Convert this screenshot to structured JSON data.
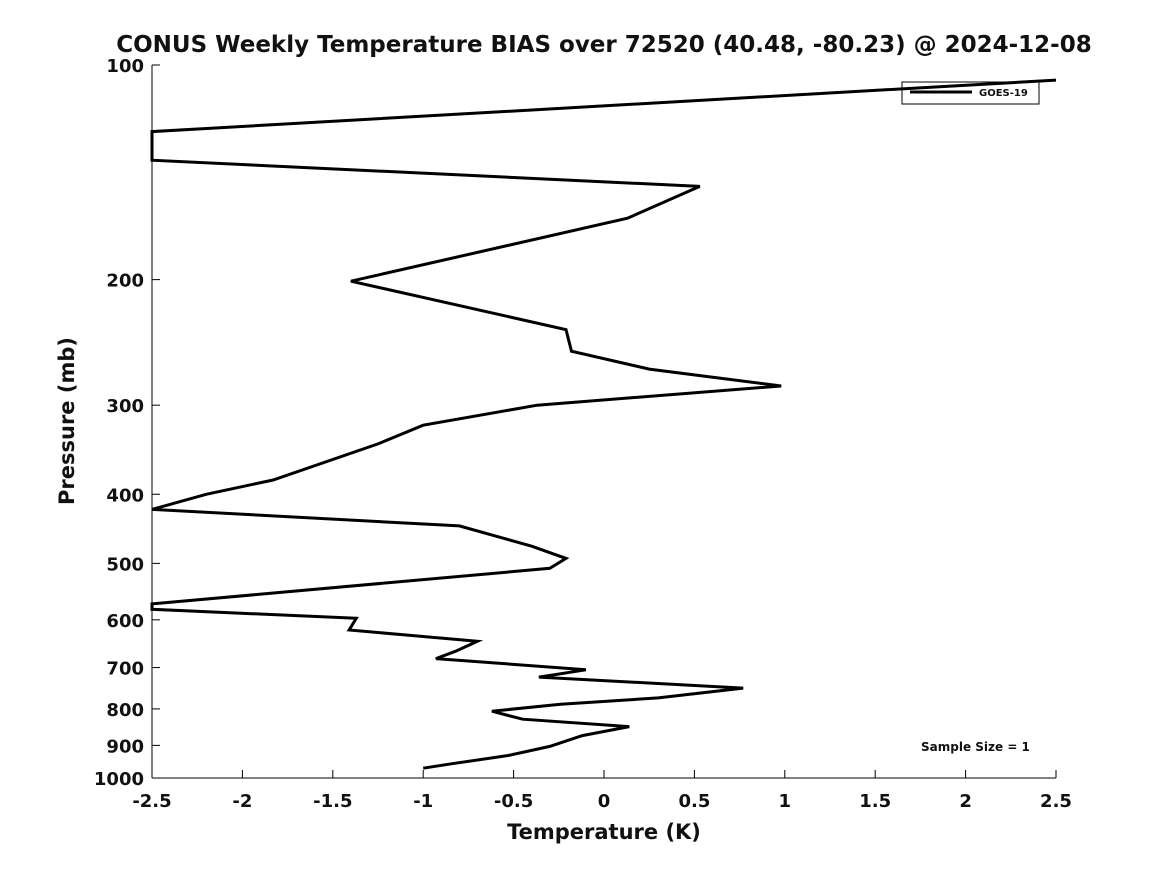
{
  "chart_data": {
    "type": "line",
    "title": "CONUS Weekly Temperature BIAS over 72520 (40.48, -80.23) @ 2024-12-08",
    "xlabel": "Temperature (K)",
    "ylabel": "Pressure (mb)",
    "xlim": [
      -2.5,
      2.5
    ],
    "ylim": [
      100,
      1000
    ],
    "y_scale": "log",
    "y_inverted": true,
    "xticks": [
      -2.5,
      -2,
      -1.5,
      -1,
      -0.5,
      0,
      0.5,
      1,
      1.5,
      2,
      2.5
    ],
    "xtick_labels": [
      "-2.5",
      "-2",
      "-1.5",
      "-1",
      "-0.5",
      "0",
      "0.5",
      "1",
      "1.5",
      "2",
      "2.5"
    ],
    "yticks": [
      100,
      200,
      300,
      400,
      500,
      600,
      700,
      800,
      900,
      1000
    ],
    "ytick_labels": [
      "100",
      "200",
      "300",
      "400",
      "500",
      "600",
      "700",
      "800",
      "900",
      "1000"
    ],
    "grid": false,
    "legend_position": "top-right",
    "annotation": "Sample Size = 1",
    "line_color": "#000000",
    "series": [
      {
        "name": "GOES-19",
        "points": [
          [
            2.5,
            105
          ],
          [
            -2.5,
            124
          ],
          [
            -2.5,
            136
          ],
          [
            0.53,
            148
          ],
          [
            0.13,
            164
          ],
          [
            -1.4,
            201
          ],
          [
            -0.21,
            235
          ],
          [
            -0.18,
            252
          ],
          [
            0.25,
            267
          ],
          [
            0.98,
            282
          ],
          [
            -0.37,
            300
          ],
          [
            -1.0,
            320
          ],
          [
            -1.25,
            340
          ],
          [
            -1.83,
            382
          ],
          [
            -2.2,
            400
          ],
          [
            -2.5,
            420
          ],
          [
            -0.8,
            443
          ],
          [
            -0.4,
            473
          ],
          [
            -0.21,
            492
          ],
          [
            -0.3,
            508
          ],
          [
            -2.5,
            570
          ],
          [
            -2.5,
            580
          ],
          [
            -1.37,
            597
          ],
          [
            -1.41,
            620
          ],
          [
            -0.7,
            643
          ],
          [
            -0.82,
            664
          ],
          [
            -0.93,
            680
          ],
          [
            -0.1,
            705
          ],
          [
            -0.36,
            722
          ],
          [
            0.77,
            748
          ],
          [
            0.3,
            772
          ],
          [
            -0.24,
            788
          ],
          [
            -0.62,
            806
          ],
          [
            -0.45,
            827
          ],
          [
            0.14,
            847
          ],
          [
            -0.12,
            872
          ],
          [
            -0.3,
            903
          ],
          [
            -0.53,
            930
          ],
          [
            -0.84,
            955
          ],
          [
            -1.0,
            969
          ]
        ]
      }
    ]
  }
}
